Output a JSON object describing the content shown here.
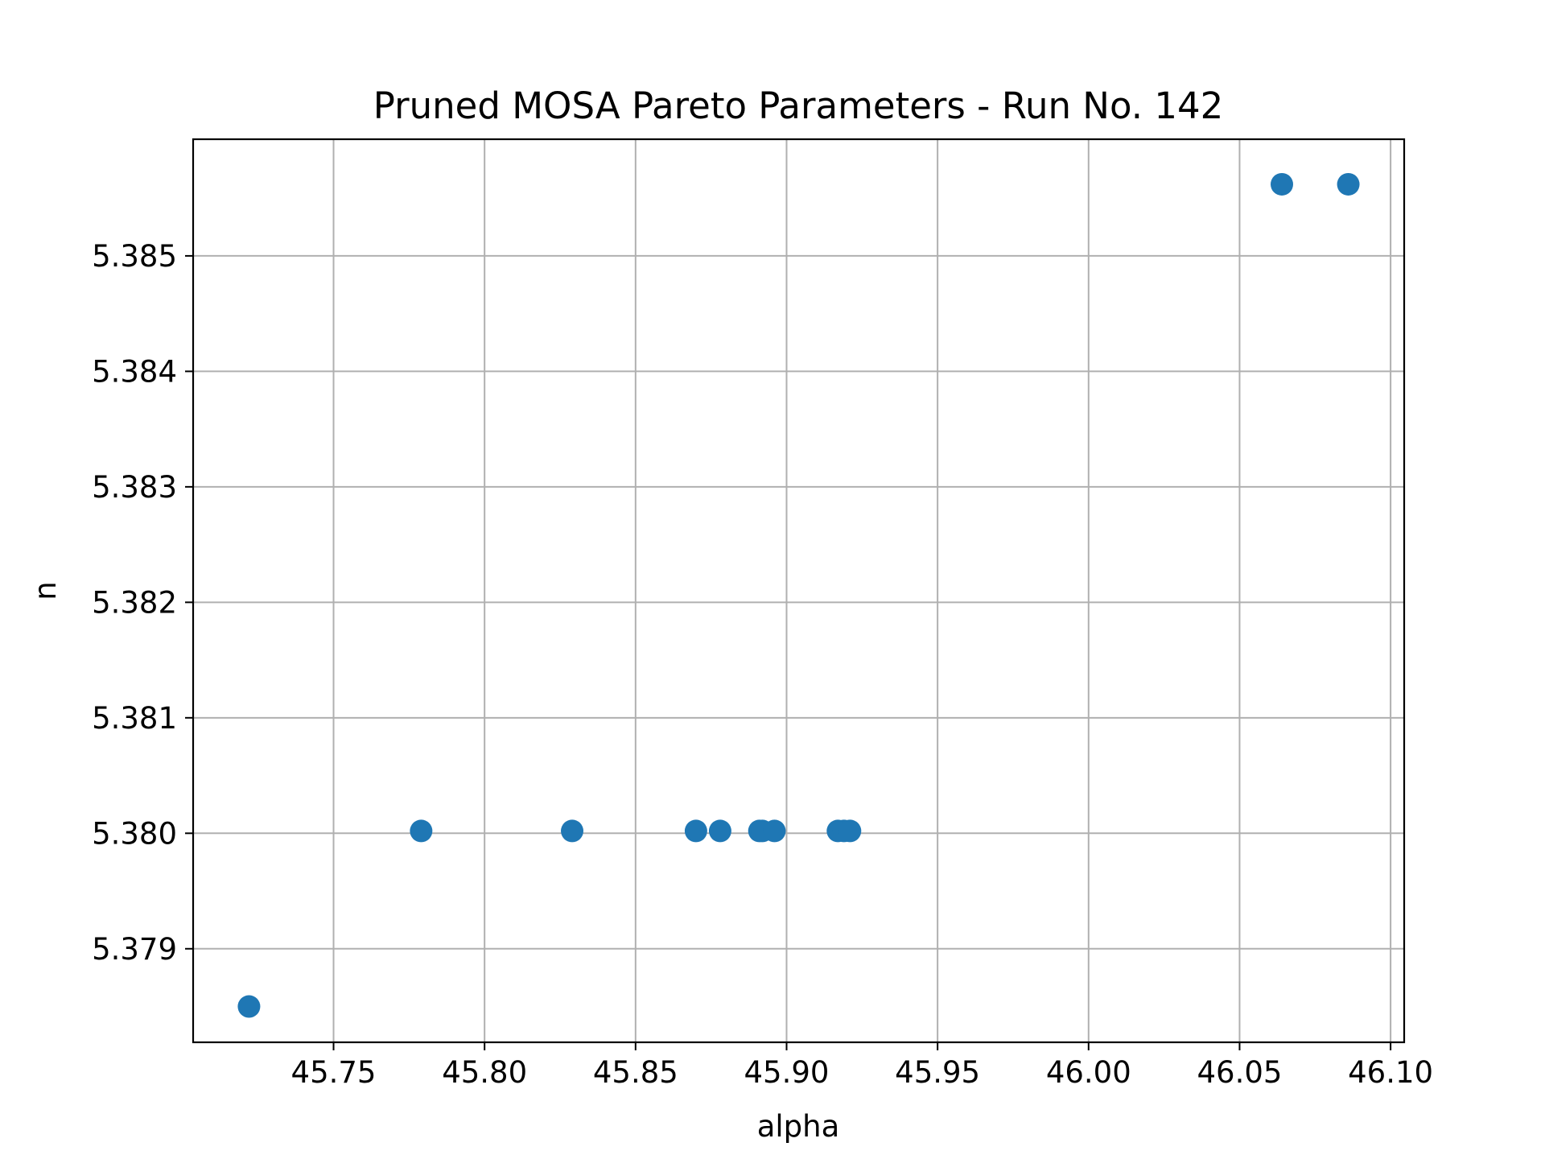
{
  "chart_data": {
    "type": "scatter",
    "title": "Pruned MOSA Pareto Parameters - Run No. 142",
    "xlabel": "alpha",
    "ylabel": "n",
    "xlim": [
      45.7035,
      46.1045
    ],
    "ylim": [
      5.37819,
      5.38601
    ],
    "xticks": [
      45.75,
      45.8,
      45.85,
      45.9,
      45.95,
      46.0,
      46.05,
      46.1
    ],
    "xtick_labels": [
      "45.75",
      "45.80",
      "45.85",
      "45.90",
      "45.95",
      "46.00",
      "46.05",
      "46.10"
    ],
    "yticks": [
      5.379,
      5.38,
      5.381,
      5.382,
      5.383,
      5.384,
      5.385
    ],
    "ytick_labels": [
      "5.379",
      "5.380",
      "5.381",
      "5.382",
      "5.383",
      "5.384",
      "5.385"
    ],
    "grid": true,
    "marker_color": "#1f77b4",
    "series": [
      {
        "x": [
          45.722,
          45.779,
          45.829,
          45.87,
          45.878,
          45.891,
          45.892,
          45.896,
          45.917,
          45.919,
          45.921,
          46.064,
          46.086
        ],
        "y": [
          5.3785,
          5.38002,
          5.38002,
          5.38002,
          5.38002,
          5.38002,
          5.38002,
          5.38002,
          5.38002,
          5.38002,
          5.38002,
          5.38562,
          5.38562
        ]
      }
    ]
  }
}
